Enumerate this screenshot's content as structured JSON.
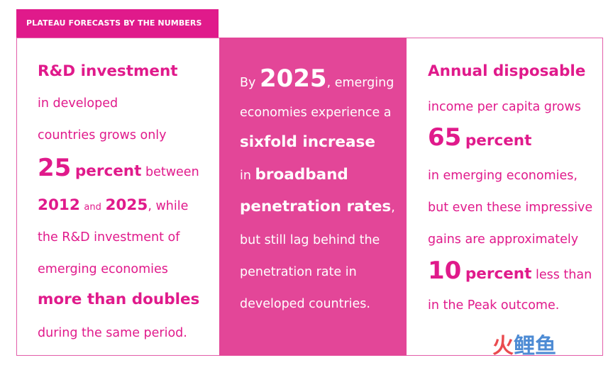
{
  "header": {
    "tab_label": "PLATEAU FORECASTS BY THE NUMBERS"
  },
  "col1": {
    "l1": "R&D investment",
    "l2": "in developed",
    "l3": "countries grows only",
    "l4_num": "25",
    "l4_pct": "percent",
    "l4_rest": "between",
    "l5_y1": "2012",
    "l5_and": "and",
    "l5_y2": "2025",
    "l5_rest": ", while",
    "l6": "the R&D investment of",
    "l7": "emerging economies",
    "l8": "more than doubles",
    "l9": "during the same period."
  },
  "col2": {
    "l1_by": "By",
    "l1_year": "2025",
    "l1_rest": ", emerging",
    "l2": "economies experience a",
    "l3": "sixfold increase",
    "l4_in": "in",
    "l4_b": "broadband",
    "l5_b": "penetration rates",
    "l5_comma": ",",
    "l6": "but still lag behind the",
    "l7": "penetration rate in",
    "l8": "developed countries."
  },
  "col3": {
    "l1": "Annual disposable",
    "l2": "income per capita grows",
    "l3_num": "65",
    "l3_pct": "percent",
    "l4": "in emerging economies,",
    "l5": "but even these impressive",
    "l6": "gains are approximately",
    "l7_num": "10",
    "l7_pct": "percent",
    "l7_rest": "less than",
    "l8": "in the Peak outcome."
  },
  "watermark": {
    "c1": "火",
    "c2": "鲤",
    "c3": "鱼"
  },
  "colors": {
    "accent": "#e01a8b",
    "panel": "#e34698",
    "watermark_red": "#e8383d",
    "watermark_blue": "#3a7fd0"
  }
}
